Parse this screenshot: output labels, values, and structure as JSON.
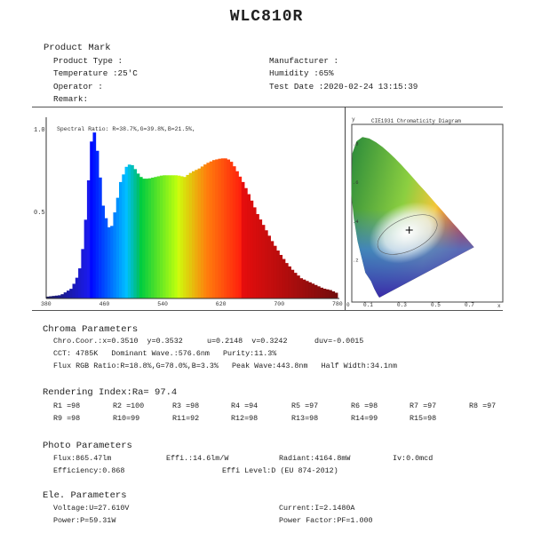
{
  "title": "WLC810R",
  "product_mark": {
    "heading": "Product Mark",
    "product_type": "Product Type :",
    "temperature": "Temperature :25'C",
    "operator": "Operator :",
    "remark": "Remark:",
    "manufacturer": "Manufacturer :",
    "humidity": "Humidity :65%",
    "test_date": "Test Date :2020-02-24 13:15:39"
  },
  "chart_data": [
    {
      "type": "area",
      "title": "Spectral Ratio:  R=38.7%,G=39.8%,B=21.5%,",
      "xlabel": "",
      "ylabel": "",
      "xlim": [
        380,
        780
      ],
      "ylim": [
        0,
        1.0
      ],
      "x_ticks": [
        "380",
        "460",
        "540",
        "620",
        "700",
        "780"
      ],
      "y_ticks": [
        "1.0",
        "0.5"
      ],
      "x": [
        380,
        400,
        415,
        425,
        432,
        438,
        442,
        445,
        448,
        452,
        458,
        465,
        470,
        476,
        482,
        490,
        496,
        500,
        506,
        512,
        520,
        530,
        540,
        550,
        560,
        570,
        580,
        590,
        600,
        610,
        620,
        628,
        634,
        640,
        650,
        660,
        670,
        680,
        690,
        700,
        710,
        720,
        730,
        740,
        750,
        760,
        770,
        780
      ],
      "y": [
        0.01,
        0.02,
        0.06,
        0.15,
        0.35,
        0.7,
        0.93,
        1.0,
        0.95,
        0.8,
        0.55,
        0.42,
        0.43,
        0.55,
        0.69,
        0.78,
        0.8,
        0.78,
        0.74,
        0.71,
        0.71,
        0.72,
        0.73,
        0.73,
        0.73,
        0.72,
        0.75,
        0.77,
        0.8,
        0.82,
        0.83,
        0.83,
        0.81,
        0.77,
        0.69,
        0.6,
        0.5,
        0.42,
        0.34,
        0.27,
        0.21,
        0.16,
        0.12,
        0.1,
        0.08,
        0.06,
        0.05,
        0.03
      ]
    },
    {
      "type": "scatter",
      "title": "CIE1931 Chromaticity Diagram",
      "xlabel": "x",
      "ylabel": "y",
      "x_ticks": [
        "0",
        "0.1",
        "0.3",
        "0.5",
        "0.7"
      ],
      "y_ticks": [
        ".8",
        ".6",
        ".4",
        ".2"
      ],
      "point": {
        "x": 0.351,
        "y": 0.3532
      }
    }
  ],
  "chroma": {
    "heading": "Chroma Parameters",
    "coor": "Chro.Coor.:x=0.3510  y=0.3532",
    "uv": "u=0.2148  v=0.3242",
    "duv": "duv=-0.0015",
    "cct": "CCT: 4785K   Dominant Wave.:576.6nm   Purity:11.3%",
    "flux_rgb": "Flux RGB Ratio:R=18.8%,G=78.0%,B=3.3%   Peak Wave:443.8nm   Half Width:34.1nm"
  },
  "rendering": {
    "heading": "Rendering Index:Ra= 97.4",
    "row1": [
      "R1 =98",
      "R2 =100",
      "R3 =98",
      "R4 =94",
      "R5 =97",
      "R6 =98",
      "R7 =97",
      "R8 =97"
    ],
    "row2": [
      "R9 =98",
      "R10=99",
      "R11=92",
      "R12=98",
      "R13=98",
      "R14=99",
      "R15=98"
    ]
  },
  "photo": {
    "heading": "Photo Parameters",
    "flux": "Flux:865.47lm",
    "effi": "Effi.:14.6lm/W",
    "radiant": "Radiant:4164.8mW",
    "iv": "Iv:0.0mcd",
    "efficiency": "Efficiency:0.868",
    "effi_level": "Effi Level:D (EU 874-2012)"
  },
  "ele": {
    "heading": "Ele. Parameters",
    "voltage": "Voltage:U=27.610V",
    "current": "Current:I=2.1480A",
    "power": "Power:P=59.31W",
    "power_factor": "Power Factor:PF=1.000"
  }
}
